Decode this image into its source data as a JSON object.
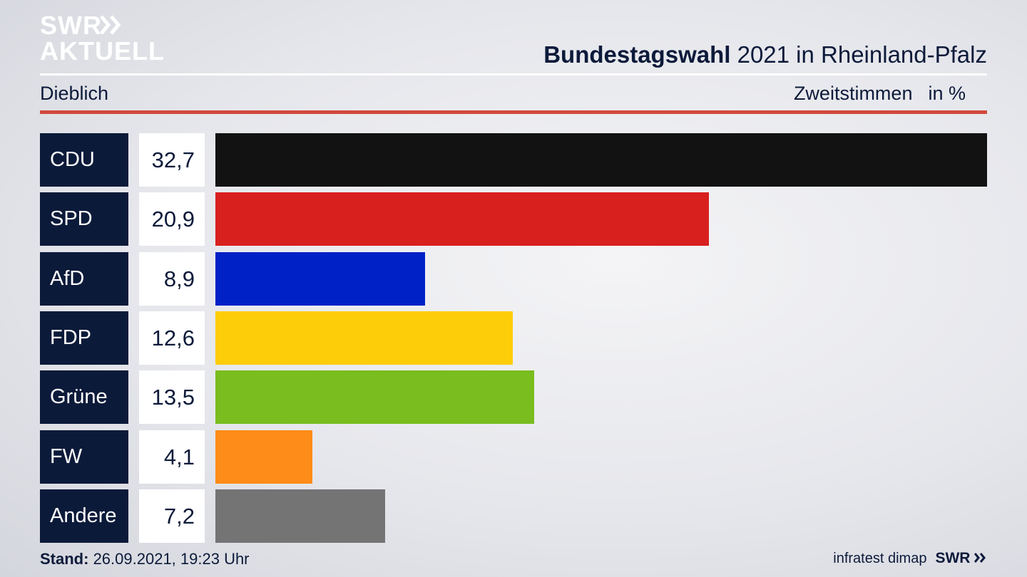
{
  "brand": {
    "logo_line1": "SWR",
    "logo_line2": "AKTUELL",
    "logo_arrows_icon": "double-chevron-right-icon",
    "logo_color": "#ffffff"
  },
  "header": {
    "title_bold": "Bundestagswahl",
    "title_rest": " 2021 in Rheinland-Pfalz",
    "location": "Dieblich",
    "measure": "Zweitstimmen",
    "unit": "in %"
  },
  "chart_data": {
    "type": "bar",
    "orientation": "horizontal",
    "categories": [
      "CDU",
      "SPD",
      "AfD",
      "FDP",
      "Grüne",
      "FW",
      "Andere"
    ],
    "values": [
      32.7,
      20.9,
      8.9,
      12.6,
      13.5,
      4.1,
      7.2
    ],
    "value_labels": [
      "32,7",
      "20,9",
      "8,9",
      "12,6",
      "13,5",
      "4,1",
      "7,2"
    ],
    "colors": [
      "#121212",
      "#d8201f",
      "#0021c6",
      "#fecd0a",
      "#79bd1e",
      "#fe8c18",
      "#747474"
    ],
    "title": "Bundestagswahl 2021 in Rheinland-Pfalz",
    "xlabel": "",
    "ylabel": "",
    "xlim": [
      0,
      32.7
    ],
    "grid": false,
    "legend": "none"
  },
  "footer": {
    "stand_label": "Stand:",
    "stand_value": " 26.09.2021, 19:23 Uhr",
    "source": "infratest dimap",
    "broadcaster": "SWR",
    "broadcaster_icon": "double-chevron-right-icon"
  }
}
